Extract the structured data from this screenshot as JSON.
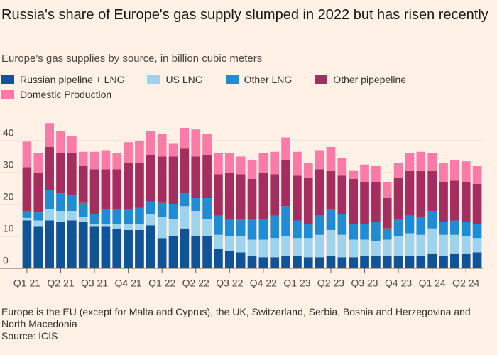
{
  "chart_data": {
    "type": "stacked_bar",
    "title": "Russia's share of Europe's gas supply slumped in 2022 but has risen recently",
    "subtitle": "Europe's gas supplies by source, in billion cubic meters",
    "footnote": "Europe is the EU (except for Malta and Cyprus), the UK, Switzerland, Serbia, Bosnia and Herzegovina and North Macedonia",
    "source": "Source: ICIS",
    "categories": [
      "Q1 21",
      null,
      null,
      "Q2 21",
      null,
      null,
      "Q3 21",
      null,
      null,
      "Q4 21",
      null,
      null,
      "Q1 22",
      null,
      null,
      "Q2 22",
      null,
      null,
      "Q3 22",
      null,
      null,
      "Q4 22",
      null,
      null,
      "Q1 23",
      null,
      null,
      "Q2 23",
      null,
      null,
      "Q3 23",
      null,
      null,
      "Q4 23",
      null,
      null,
      "Q1 24",
      null,
      null,
      "Q2 24",
      null
    ],
    "series": [
      {
        "name": "Russian pipeline + LNG",
        "color": "#0f5499",
        "values": [
          15,
          13,
          15,
          14.5,
          15,
          14.5,
          13,
          13,
          12.5,
          12,
          12,
          13.5,
          9.5,
          10,
          12.5,
          10,
          10,
          6,
          5.5,
          5,
          4,
          3.5,
          3.5,
          4,
          4,
          3.5,
          3.5,
          4,
          3.5,
          3.5,
          4,
          4,
          4,
          4,
          4,
          4,
          4.5,
          4,
          4.5,
          4.5,
          5
        ]
      },
      {
        "name": "US LNG",
        "color": "#9dd3ec",
        "values": [
          0.8,
          2,
          3.5,
          3.5,
          3,
          1.5,
          1,
          1,
          1.5,
          2,
          2,
          3.5,
          6.5,
          5.5,
          7,
          8,
          5.5,
          4.5,
          4.5,
          5,
          5,
          5.5,
          6,
          6,
          5.5,
          6,
          7,
          8,
          7,
          5.5,
          5,
          4.5,
          5,
          6,
          7,
          6.5,
          8,
          6.5,
          6,
          5.5,
          4.5
        ]
      },
      {
        "name": "Other LNG",
        "color": "#1f8dd6",
        "values": [
          2.2,
          2.5,
          6,
          5.5,
          5,
          4.5,
          3,
          4.5,
          4.5,
          4.5,
          5,
          4,
          4.5,
          4.5,
          4,
          4,
          6.5,
          6,
          5.5,
          5.5,
          6.5,
          6.5,
          7,
          9.5,
          5.5,
          4.5,
          6,
          6.5,
          6.5,
          5,
          5,
          6,
          3.5,
          5.5,
          5.5,
          5.5,
          5.5,
          4,
          4.5,
          4.5,
          4.5
        ]
      },
      {
        "name": "Other pipepeline",
        "color": "#a62d5f",
        "values": [
          13.7,
          12.5,
          13.5,
          12.5,
          13,
          11.5,
          14,
          12.5,
          12.5,
          14.5,
          14,
          14.5,
          14.5,
          15,
          14,
          13,
          13.5,
          13,
          14.5,
          14,
          12.5,
          14.5,
          13,
          14.5,
          14,
          14.5,
          14.5,
          12,
          12,
          14,
          13,
          12.5,
          9.5,
          13,
          14,
          14.5,
          12.5,
          12.5,
          12.5,
          12.5,
          12.5
        ]
      },
      {
        "name": "Domestic Production",
        "color": "#fc7aa8",
        "values": [
          8,
          6,
          7.5,
          7,
          5.5,
          4.5,
          5.5,
          6,
          5,
          6.5,
          7,
          7.5,
          7,
          4,
          6.5,
          8.5,
          6.5,
          6.5,
          6,
          5.5,
          6,
          6,
          7,
          7,
          7.5,
          4.5,
          6,
          7.5,
          5.5,
          2.5,
          5.5,
          5,
          5,
          4.5,
          5.5,
          6,
          5.5,
          6,
          6.5,
          6.5,
          5.5
        ]
      }
    ],
    "ylim": [
      0,
      46
    ],
    "yticks": [
      0,
      10,
      20,
      30,
      40
    ],
    "grid": true
  }
}
